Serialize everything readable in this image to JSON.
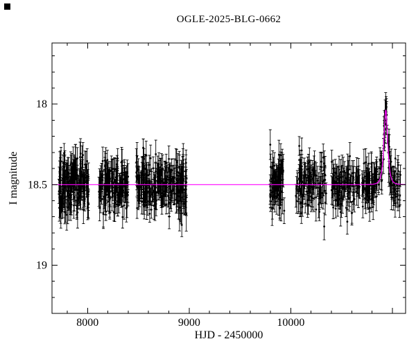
{
  "figure": {
    "title": "OGLE-2025-BLG-0662",
    "x_axis_label": "HJD - 2450000",
    "y_axis_label": "I magnitude"
  },
  "chart_data": {
    "type": "scatter",
    "title": "OGLE-2025-BLG-0662",
    "xlabel": "HJD - 2450000",
    "ylabel": "I magnitude",
    "xlim": [
      7650,
      11130
    ],
    "ylim": [
      17.62,
      19.3
    ],
    "y_axis_inverted": true,
    "grid": false,
    "legend": "none",
    "x_ticks": [
      {
        "value": 8000,
        "label": "8000"
      },
      {
        "value": 9000,
        "label": "9000"
      },
      {
        "value": 10000,
        "label": "10000"
      },
      {
        "value": 11000,
        "label": ""
      }
    ],
    "y_ticks": [
      {
        "value": 18.0,
        "label": "18"
      },
      {
        "value": 18.5,
        "label": "18.5"
      },
      {
        "value": 19.0,
        "label": "19"
      }
    ],
    "x_minor_tick_step": 200,
    "y_minor_tick_step": 0.1,
    "point_color": "#000000",
    "model_color": "#ff00ff",
    "baseline_mag": 18.5,
    "microlensing_model": {
      "t0": 10935,
      "tE": 25,
      "u0": 0.8,
      "baseline_mag": 18.5,
      "peak_mag": 18.04
    },
    "seasons": [
      {
        "x_start": 7715,
        "x_end": 8010,
        "n": 160,
        "mean_mag": 18.5,
        "scatter": 0.09,
        "err": 0.08
      },
      {
        "x_start": 8110,
        "x_end": 8400,
        "n": 150,
        "mean_mag": 18.5,
        "scatter": 0.08,
        "err": 0.07
      },
      {
        "x_start": 8480,
        "x_end": 8860,
        "n": 180,
        "mean_mag": 18.5,
        "scatter": 0.08,
        "err": 0.07
      },
      {
        "x_start": 8870,
        "x_end": 8975,
        "n": 60,
        "mean_mag": 18.5,
        "scatter": 0.1,
        "err": 0.09
      },
      {
        "x_start": 9795,
        "x_end": 9935,
        "n": 70,
        "mean_mag": 18.5,
        "scatter": 0.09,
        "err": 0.08
      },
      {
        "x_start": 10050,
        "x_end": 10350,
        "n": 110,
        "mean_mag": 18.5,
        "scatter": 0.08,
        "err": 0.07
      },
      {
        "x_start": 10400,
        "x_end": 10680,
        "n": 100,
        "mean_mag": 18.5,
        "scatter": 0.07,
        "err": 0.07
      },
      {
        "x_start": 10700,
        "x_end": 11080,
        "n": 140,
        "mean_mag": 18.5,
        "scatter": 0.07,
        "err": 0.07
      }
    ],
    "random_seed": 20250662
  }
}
